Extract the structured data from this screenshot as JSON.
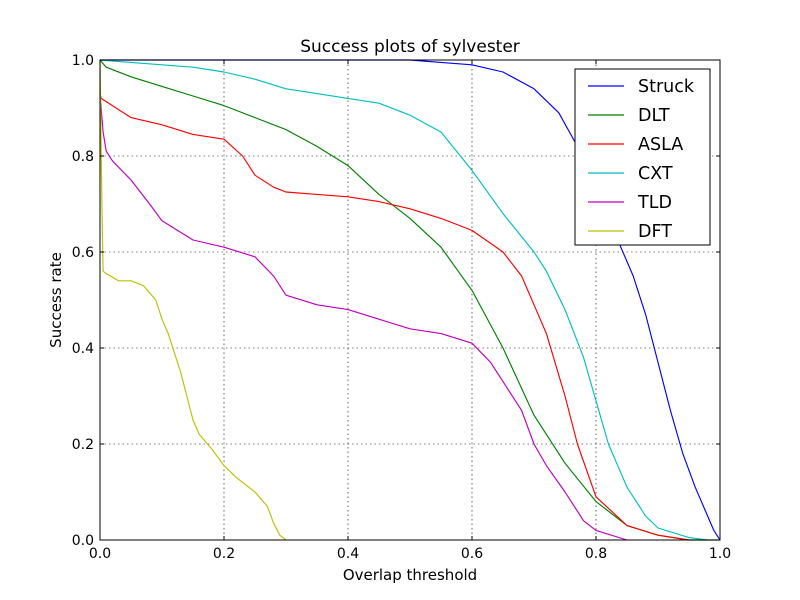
{
  "chart_data": {
    "type": "line",
    "title": "Success plots of sylvester",
    "xlabel": "Overlap threshold",
    "ylabel": "Success rate",
    "xlim": [
      0,
      1
    ],
    "ylim": [
      0,
      1
    ],
    "xticks": [
      "0.0",
      "0.2",
      "0.4",
      "0.6",
      "0.8",
      "1.0"
    ],
    "yticks": [
      "0.0",
      "0.2",
      "0.4",
      "0.6",
      "0.8",
      "1.0"
    ],
    "grid": true,
    "legend_position": "top-right",
    "series": [
      {
        "name": "Struck",
        "color": "#0000ff",
        "x": [
          0,
          0.02,
          0.1,
          0.3,
          0.5,
          0.55,
          0.6,
          0.65,
          0.7,
          0.74,
          0.77,
          0.8,
          0.83,
          0.86,
          0.88,
          0.9,
          0.92,
          0.94,
          0.96,
          0.98,
          0.99,
          1.0
        ],
        "y": [
          1.0,
          1.0,
          1.0,
          1.0,
          1.0,
          0.995,
          0.99,
          0.975,
          0.94,
          0.89,
          0.82,
          0.75,
          0.64,
          0.55,
          0.47,
          0.37,
          0.27,
          0.18,
          0.11,
          0.05,
          0.02,
          0.0
        ]
      },
      {
        "name": "DLT",
        "color": "#008000",
        "x": [
          0,
          0.01,
          0.05,
          0.1,
          0.15,
          0.2,
          0.25,
          0.3,
          0.35,
          0.4,
          0.45,
          0.5,
          0.55,
          0.6,
          0.65,
          0.7,
          0.75,
          0.8,
          0.85,
          0.9,
          0.95,
          1.0
        ],
        "y": [
          1.0,
          0.985,
          0.965,
          0.945,
          0.925,
          0.905,
          0.88,
          0.855,
          0.82,
          0.78,
          0.72,
          0.67,
          0.61,
          0.52,
          0.4,
          0.26,
          0.16,
          0.08,
          0.03,
          0.01,
          0.0,
          0.0
        ]
      },
      {
        "name": "ASLA",
        "color": "#ff0000",
        "x": [
          0,
          0.002,
          0.05,
          0.1,
          0.15,
          0.2,
          0.23,
          0.25,
          0.28,
          0.3,
          0.35,
          0.4,
          0.45,
          0.5,
          0.55,
          0.6,
          0.65,
          0.68,
          0.7,
          0.72,
          0.75,
          0.77,
          0.8,
          0.85,
          0.9,
          0.95
        ],
        "y": [
          0.93,
          0.92,
          0.88,
          0.865,
          0.845,
          0.835,
          0.8,
          0.76,
          0.735,
          0.725,
          0.72,
          0.715,
          0.705,
          0.69,
          0.67,
          0.645,
          0.6,
          0.55,
          0.49,
          0.43,
          0.3,
          0.2,
          0.09,
          0.03,
          0.01,
          0.0
        ]
      },
      {
        "name": "CXT",
        "color": "#00bfbf",
        "x": [
          0,
          0.05,
          0.1,
          0.15,
          0.2,
          0.25,
          0.3,
          0.35,
          0.4,
          0.45,
          0.5,
          0.55,
          0.6,
          0.65,
          0.7,
          0.72,
          0.75,
          0.78,
          0.8,
          0.82,
          0.85,
          0.88,
          0.9,
          0.95,
          0.98
        ],
        "y": [
          1.0,
          0.995,
          0.99,
          0.985,
          0.975,
          0.96,
          0.94,
          0.93,
          0.92,
          0.91,
          0.885,
          0.85,
          0.77,
          0.68,
          0.6,
          0.56,
          0.48,
          0.38,
          0.29,
          0.2,
          0.11,
          0.05,
          0.025,
          0.005,
          0.0
        ]
      },
      {
        "name": "TLD",
        "color": "#bf00bf",
        "x": [
          0,
          0.005,
          0.01,
          0.02,
          0.05,
          0.08,
          0.1,
          0.15,
          0.2,
          0.25,
          0.28,
          0.3,
          0.35,
          0.4,
          0.45,
          0.5,
          0.55,
          0.6,
          0.63,
          0.65,
          0.68,
          0.7,
          0.72,
          0.75,
          0.78,
          0.8,
          0.85
        ],
        "y": [
          0.93,
          0.85,
          0.81,
          0.79,
          0.75,
          0.7,
          0.665,
          0.625,
          0.61,
          0.59,
          0.55,
          0.51,
          0.49,
          0.48,
          0.46,
          0.44,
          0.43,
          0.41,
          0.37,
          0.33,
          0.27,
          0.2,
          0.155,
          0.1,
          0.04,
          0.02,
          0.0
        ]
      },
      {
        "name": "DFT",
        "color": "#bfbf00",
        "x": [
          0,
          0.003,
          0.005,
          0.01,
          0.03,
          0.05,
          0.07,
          0.09,
          0.1,
          0.11,
          0.12,
          0.13,
          0.14,
          0.15,
          0.16,
          0.18,
          0.2,
          0.22,
          0.25,
          0.27,
          0.28,
          0.29,
          0.3
        ],
        "y": [
          1.0,
          0.7,
          0.56,
          0.555,
          0.54,
          0.54,
          0.53,
          0.5,
          0.46,
          0.43,
          0.39,
          0.35,
          0.3,
          0.25,
          0.22,
          0.19,
          0.155,
          0.13,
          0.1,
          0.07,
          0.035,
          0.01,
          0.0
        ]
      }
    ]
  }
}
